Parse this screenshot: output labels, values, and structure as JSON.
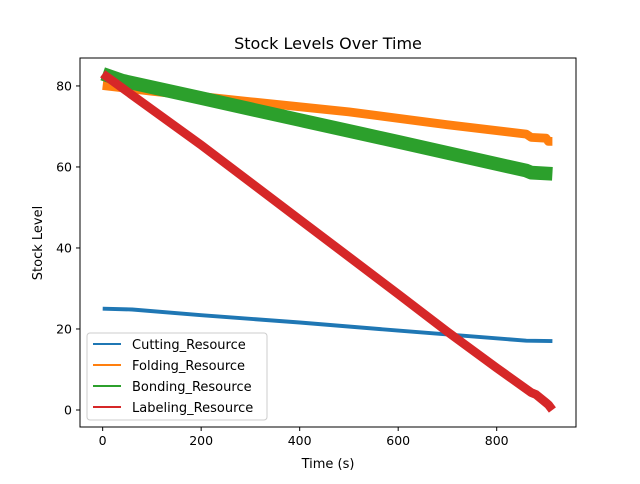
{
  "chart_data": {
    "type": "line",
    "title": "Stock Levels Over Time",
    "xlabel": "Time (s)",
    "ylabel": "Stock Level",
    "xlim": [
      -46,
      961
    ],
    "ylim": [
      -4.2,
      86.9
    ],
    "xticks": [
      0,
      200,
      400,
      600,
      800
    ],
    "yticks": [
      0,
      20,
      40,
      60,
      80
    ],
    "grid": false,
    "legend_position": "lower-left",
    "series": [
      {
        "name": "Cutting_Resource",
        "color": "#1f77b4",
        "points": [
          [
            0,
            25
          ],
          [
            60,
            24.8
          ],
          [
            200,
            23.4
          ],
          [
            400,
            21.6
          ],
          [
            600,
            19.6
          ],
          [
            860,
            17.1
          ],
          [
            913,
            17
          ]
        ],
        "band": 0.3
      },
      {
        "name": "Folding_Resource",
        "color": "#ff7f0e",
        "points": [
          [
            0,
            80.1
          ],
          [
            100,
            78.7
          ],
          [
            300,
            76.1
          ],
          [
            500,
            73.6
          ],
          [
            700,
            70.4
          ],
          [
            860,
            68.1
          ],
          [
            870,
            67.3
          ],
          [
            900,
            67.1
          ],
          [
            905,
            66.3
          ],
          [
            913,
            66.3
          ]
        ],
        "band": 0.9
      },
      {
        "name": "Bonding_Resource",
        "color": "#2ca02c",
        "points": [
          [
            0,
            83
          ],
          [
            40,
            81.3
          ],
          [
            200,
            77
          ],
          [
            400,
            71.6
          ],
          [
            600,
            66.2
          ],
          [
            860,
            59.1
          ],
          [
            870,
            58.6
          ],
          [
            913,
            58.3
          ]
        ],
        "band": 1.5
      },
      {
        "name": "Labeling_Resource",
        "color": "#d62728",
        "points": [
          [
            0,
            83
          ],
          [
            200,
            65.4
          ],
          [
            400,
            47
          ],
          [
            600,
            28.6
          ],
          [
            700,
            19.3
          ],
          [
            800,
            10.4
          ],
          [
            870,
            4.3
          ],
          [
            880,
            3.8
          ],
          [
            900,
            1.8
          ],
          [
            905,
            1.3
          ],
          [
            913,
            0
          ]
        ],
        "band": 0.9
      }
    ]
  }
}
